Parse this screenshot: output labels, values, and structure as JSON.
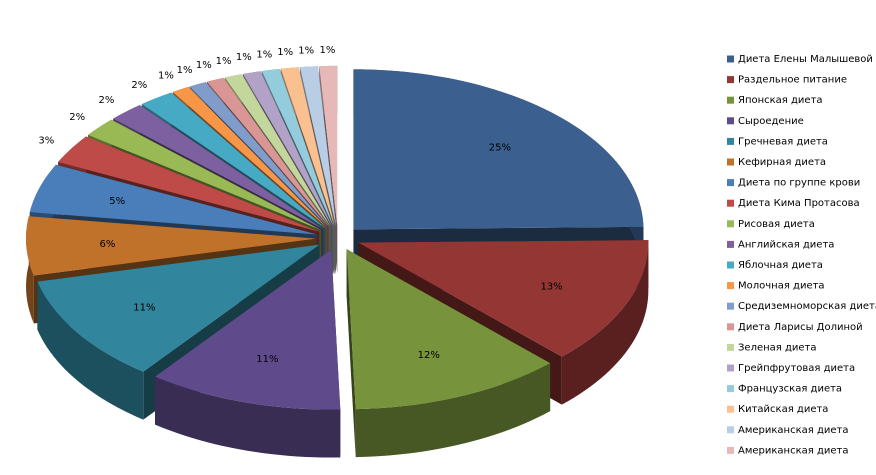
{
  "chart_data": {
    "type": "pie",
    "categories": [
      "Диета Елены Малышевой",
      "Раздельное питание",
      "Японская диета",
      "Сыроедение",
      "Гречневая диета",
      "Кефирная диета",
      "Диета по группе крови",
      "Диета Кима Протасова",
      "Рисовая диета",
      "Английская диета",
      "Яблочная диета",
      "Молочная диета",
      "Средиземноморская диета",
      "Диета Ларисы Долиной",
      "Зеленая диета",
      "Грейпфрутовая диета",
      "Французская диета",
      "Китайская диета",
      "Американская диета",
      "Американская диета"
    ],
    "values": [
      25,
      13,
      12,
      11,
      11,
      6,
      5,
      3,
      2,
      2,
      2,
      1,
      1,
      1,
      1,
      1,
      1,
      1,
      1,
      1
    ],
    "value_labels": [
      "25%",
      "13%",
      "12%",
      "11%",
      "11%",
      "6%",
      "5%",
      "3%",
      "2%",
      "2%",
      "2%",
      "1%",
      "1%",
      "1%",
      "1%",
      "1%",
      "1%",
      "1%",
      "1%",
      "1%"
    ],
    "colors": [
      "#3b5f8f",
      "#943634",
      "#77933c",
      "#5f4b8b",
      "#31859c",
      "#c0722b",
      "#4a7ebb",
      "#be4b48",
      "#98b954",
      "#7d60a0",
      "#46aac5",
      "#f79646",
      "#7f9ccb",
      "#d99694",
      "#c3d69b",
      "#b3a2c7",
      "#93cddd",
      "#fac090",
      "#b9cde5",
      "#e6b9b8"
    ],
    "legend": "right"
  }
}
